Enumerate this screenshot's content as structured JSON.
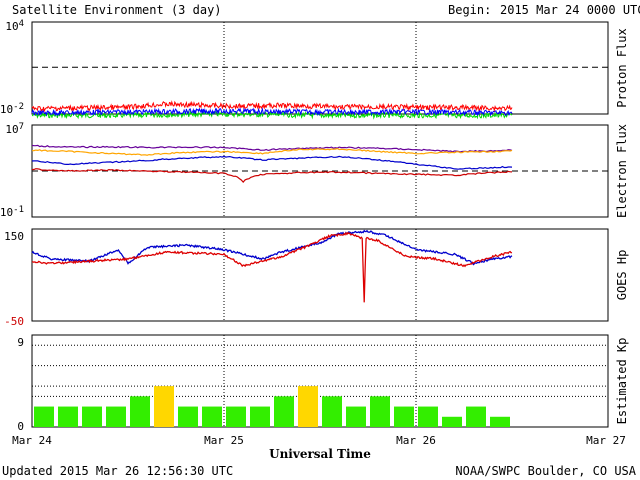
{
  "header": {
    "title": "Satellite Environment (3 day)",
    "begin_label": "Begin:",
    "begin_value": "2015 Mar 24 0000 UTC"
  },
  "footer": {
    "updated": "Updated 2015 Mar 26 12:56:30 UTC",
    "credit": "NOAA/SWPC Boulder, CO USA"
  },
  "colors": {
    "proton_high": "#ff0000",
    "proton_mid": "#0000ff",
    "proton_low": "#00dd00",
    "electron_red": "#cc0000",
    "electron_blue": "#0000cc",
    "electron_orange": "#ffa500",
    "electron_purple": "#660099",
    "hp_red": "#dd0000",
    "hp_blue": "#0000cc",
    "kp_normal": "#33ee00",
    "kp_storm": "#ffd700"
  },
  "chart_data": [
    {
      "type": "line",
      "ylabel": "Proton Flux",
      "yscale": "log",
      "y_tick_labels": [
        "10^4",
        "10^-2"
      ],
      "threshold_line": 10,
      "x_range_days": [
        0,
        3
      ],
      "series": [
        {
          "color_key": "proton_high",
          "x": [
            0,
            0.5,
            0.7,
            1.0,
            1.3,
            1.6,
            2.0,
            2.3,
            2.5
          ],
          "y": [
            0.012,
            0.015,
            0.025,
            0.018,
            0.02,
            0.016,
            0.015,
            0.014,
            0.013
          ]
        },
        {
          "color_key": "proton_mid",
          "x": [
            0,
            0.5,
            1.0,
            1.5,
            2.0,
            2.5
          ],
          "y": [
            0.006,
            0.007,
            0.008,
            0.007,
            0.007,
            0.006
          ]
        },
        {
          "color_key": "proton_low",
          "x": [
            0,
            0.5,
            1.0,
            1.5,
            2.0,
            2.5
          ],
          "y": [
            0.004,
            0.004,
            0.005,
            0.004,
            0.004,
            0.004
          ]
        }
      ]
    },
    {
      "type": "line",
      "ylabel": "Electron Flux",
      "yscale": "log",
      "y_tick_labels": [
        "10^7",
        "10^-1"
      ],
      "threshold_line": 1000,
      "x_range_days": [
        0,
        3
      ],
      "series": [
        {
          "color_key": "electron_purple",
          "x": [
            0,
            0.2,
            0.4,
            0.6,
            0.8,
            1.0,
            1.2,
            1.4,
            1.6,
            1.8,
            2.0,
            2.2,
            2.4,
            2.5
          ],
          "y": [
            200000,
            150000,
            160000,
            140000,
            150000,
            140000,
            80000,
            120000,
            140000,
            120000,
            90000,
            60000,
            70000,
            80000
          ]
        },
        {
          "color_key": "electron_orange",
          "x": [
            0,
            0.2,
            0.4,
            0.6,
            0.8,
            1.0,
            1.2,
            1.4,
            1.6,
            1.8,
            2.0,
            2.2,
            2.4,
            2.5
          ],
          "y": [
            80000,
            60000,
            40000,
            30000,
            50000,
            60000,
            40000,
            90000,
            100000,
            60000,
            40000,
            50000,
            60000,
            70000
          ]
        },
        {
          "color_key": "electron_blue",
          "x": [
            0,
            0.2,
            0.4,
            0.6,
            0.8,
            1.0,
            1.2,
            1.4,
            1.6,
            1.8,
            2.0,
            2.2,
            2.4,
            2.5
          ],
          "y": [
            8000,
            4000,
            6000,
            9000,
            15000,
            20000,
            10000,
            15000,
            20000,
            10000,
            4000,
            1500,
            2000,
            2500
          ]
        },
        {
          "color_key": "electron_red",
          "x": [
            0,
            0.2,
            0.4,
            0.6,
            0.8,
            1.0,
            1.1,
            1.2,
            1.4,
            1.6,
            1.8,
            2.0,
            2.2,
            2.4,
            2.5
          ],
          "y": [
            1500,
            1000,
            1200,
            1000,
            800,
            600,
            100,
            500,
            700,
            800,
            600,
            500,
            400,
            700,
            900
          ]
        }
      ]
    },
    {
      "type": "line",
      "ylabel": "GOES Hp",
      "y_tick_labels": [
        "150",
        "-50"
      ],
      "ylim": [
        -50,
        150
      ],
      "x_range_days": [
        0,
        3
      ],
      "series": [
        {
          "color_key": "hp_blue",
          "x": [
            0,
            0.1,
            0.3,
            0.45,
            0.5,
            0.6,
            0.8,
            1.0,
            1.2,
            1.3,
            1.5,
            1.6,
            1.75,
            1.85,
            2.0,
            2.2,
            2.3,
            2.4,
            2.5
          ],
          "y": [
            100,
            85,
            80,
            105,
            75,
            110,
            115,
            105,
            85,
            100,
            120,
            140,
            145,
            135,
            105,
            95,
            75,
            85,
            90
          ]
        },
        {
          "color_key": "hp_red",
          "x": [
            0,
            0.1,
            0.3,
            0.5,
            0.7,
            1.0,
            1.1,
            1.2,
            1.3,
            1.45,
            1.55,
            1.65,
            1.72,
            1.73,
            1.74,
            1.8,
            1.95,
            2.1,
            2.25,
            2.4,
            2.5
          ],
          "y": [
            80,
            75,
            80,
            85,
            100,
            95,
            70,
            80,
            90,
            115,
            135,
            140,
            130,
            -10,
            130,
            125,
            90,
            85,
            70,
            90,
            100
          ]
        }
      ]
    },
    {
      "type": "bar",
      "ylabel": "Estimated Kp",
      "y_tick_labels": [
        "9",
        "0"
      ],
      "ylim": [
        0,
        9
      ],
      "bin_hours": 3,
      "values": [
        2,
        2,
        2,
        2,
        3,
        4,
        2,
        2,
        2,
        2,
        3,
        4,
        3,
        2,
        3,
        2,
        2,
        1,
        2,
        1
      ],
      "storm_threshold": 4
    }
  ],
  "x_axis": {
    "tick_labels": [
      "Mar 24",
      "Mar 25",
      "Mar 26",
      "Mar 27"
    ],
    "title": "Universal Time"
  }
}
